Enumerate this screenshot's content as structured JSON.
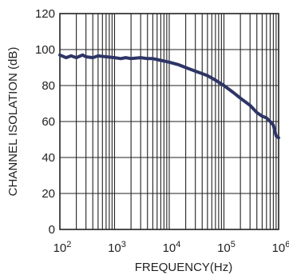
{
  "chart_data": {
    "type": "line",
    "xlabel": "FREQUENCY(Hz)",
    "ylabel": "CHANNEL ISOLATION (dB)",
    "xscale": "log",
    "xlim": [
      100,
      1000000
    ],
    "ylim": [
      0,
      120
    ],
    "grid": true,
    "x_ticks": [
      {
        "base": "10",
        "exp": "2"
      },
      {
        "base": "10",
        "exp": "3"
      },
      {
        "base": "10",
        "exp": "4"
      },
      {
        "base": "10",
        "exp": "5"
      },
      {
        "base": "10",
        "exp": "6"
      }
    ],
    "y_ticks": [
      "0",
      "20",
      "40",
      "60",
      "80",
      "100",
      "120"
    ],
    "line_color": "#2e3566",
    "series": [
      {
        "x": [
          100,
          130,
          160,
          200,
          260,
          300,
          400,
          500,
          700,
          1000,
          1300,
          1600,
          2000,
          3000,
          4000,
          5000,
          7000,
          10000,
          15000,
          20000,
          30000,
          50000,
          70000,
          100000,
          150000,
          200000,
          300000,
          400000,
          500000,
          600000,
          700000,
          800000,
          900000,
          1000000
        ],
        "y": [
          97,
          95.5,
          96.5,
          95.5,
          97,
          96,
          95.5,
          96.5,
          96,
          95.5,
          95,
          95.5,
          95,
          95.5,
          95,
          95,
          94,
          93,
          91.5,
          90,
          88,
          85.5,
          83,
          80,
          76,
          73,
          69,
          65,
          63,
          62,
          60,
          58,
          52,
          51
        ]
      }
    ]
  }
}
